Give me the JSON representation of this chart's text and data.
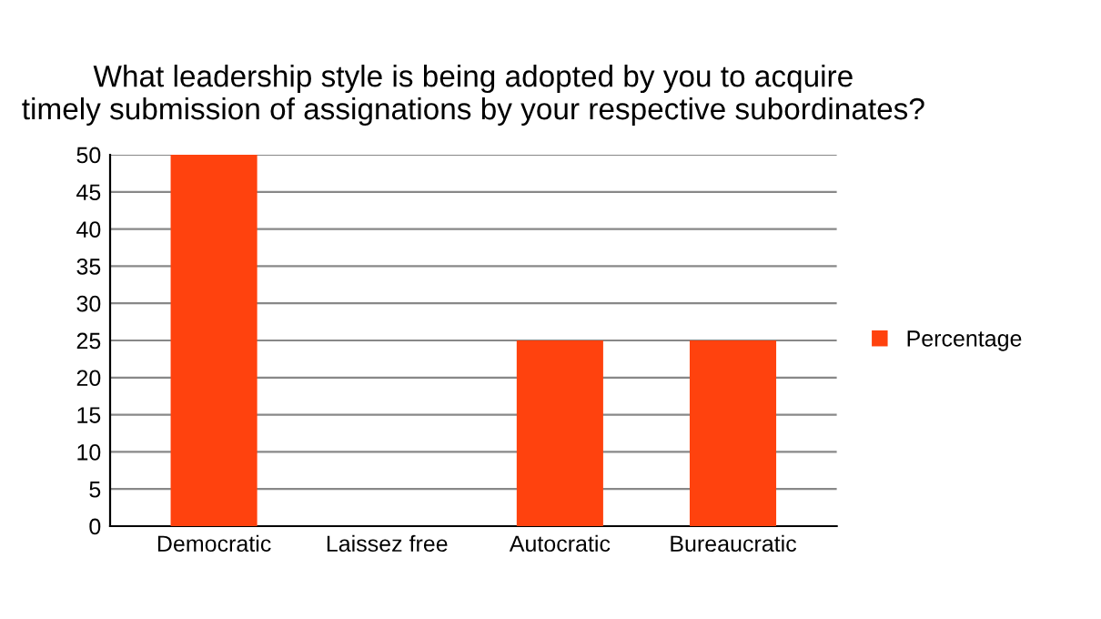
{
  "chart_data": {
    "type": "bar",
    "title": "What leadership style is being adopted by you to acquire\ntimely submission of assignations by your respective subordinates?",
    "categories": [
      "Democratic",
      "Laissez free",
      "Autocratic",
      "Bureaucratic"
    ],
    "series": [
      {
        "name": "Percentage",
        "color": "#ff420e",
        "values": [
          50,
          0,
          25,
          25
        ]
      }
    ],
    "ylim": [
      0,
      50
    ],
    "yticks": [
      0,
      5,
      10,
      15,
      20,
      25,
      30,
      35,
      40,
      45,
      50
    ],
    "grid": "y",
    "legend": "right"
  }
}
